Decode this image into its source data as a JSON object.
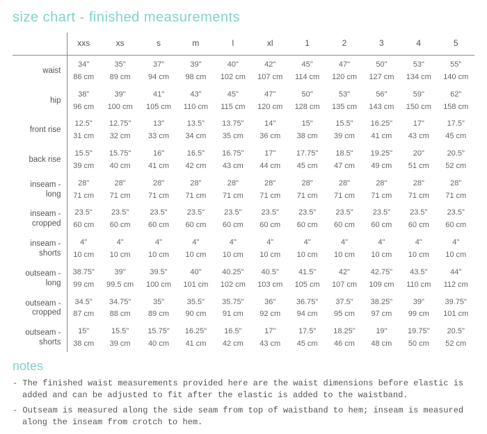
{
  "title": "size chart - finished measurements",
  "colors": {
    "accent": "#80d3c9",
    "text": "#505050",
    "cell": "#666666",
    "rule": "#888888",
    "background": "#ffffff"
  },
  "sizes": [
    "xxs",
    "xs",
    "s",
    "m",
    "l",
    "xl",
    "1",
    "2",
    "3",
    "4",
    "5"
  ],
  "rows": [
    {
      "label": "waist",
      "inches": [
        "34\"",
        "35\"",
        "37\"",
        "39\"",
        "40\"",
        "42\"",
        "45\"",
        "47\"",
        "50\"",
        "53\"",
        "55\""
      ],
      "cm": [
        "86 cm",
        "89 cm",
        "94 cm",
        "98 cm",
        "102 cm",
        "107 cm",
        "114 cm",
        "120 cm",
        "127 cm",
        "134 cm",
        "140 cm"
      ]
    },
    {
      "label": "hip",
      "inches": [
        "38\"",
        "39\"",
        "41\"",
        "43\"",
        "45\"",
        "47\"",
        "50\"",
        "53\"",
        "56\"",
        "59\"",
        "62\""
      ],
      "cm": [
        "96 cm",
        "100 cm",
        "105 cm",
        "110 cm",
        "115 cm",
        "120 cm",
        "128 cm",
        "135 cm",
        "143 cm",
        "150 cm",
        "158 cm"
      ]
    },
    {
      "label": "front rise",
      "inches": [
        "12.5\"",
        "12.75\"",
        "13\"",
        "13.5\"",
        "13.75\"",
        "14\"",
        "15\"",
        "15.5\"",
        "16.25\"",
        "17\"",
        "17.5\""
      ],
      "cm": [
        "31 cm",
        "32 cm",
        "33 cm",
        "34 cm",
        "35 cm",
        "36 cm",
        "38 cm",
        "39 cm",
        "41 cm",
        "43 cm",
        "45 cm"
      ]
    },
    {
      "label": "back rise",
      "inches": [
        "15.5\"",
        "15.75\"",
        "16\"",
        "16.5\"",
        "16.75\"",
        "17\"",
        "17.75\"",
        "18.5\"",
        "19.25\"",
        "20\"",
        "20.5\""
      ],
      "cm": [
        "39 cm",
        "40 cm",
        "41 cm",
        "42 cm",
        "43 cm",
        "44 cm",
        "45 cm",
        "47 cm",
        "49 cm",
        "51 cm",
        "52 cm"
      ]
    },
    {
      "label": "inseam -\nlong",
      "inches": [
        "28\"",
        "28\"",
        "28\"",
        "28\"",
        "28\"",
        "28\"",
        "28\"",
        "28\"",
        "28\"",
        "28\"",
        "28\""
      ],
      "cm": [
        "71 cm",
        "71 cm",
        "71 cm",
        "71 cm",
        "71 cm",
        "71 cm",
        "71 cm",
        "71 cm",
        "71 cm",
        "71 cm",
        "71 cm"
      ]
    },
    {
      "label": "inseam -\ncropped",
      "inches": [
        "23.5\"",
        "23.5\"",
        "23.5\"",
        "23.5\"",
        "23.5\"",
        "23.5\"",
        "23.5\"",
        "23.5\"",
        "23.5\"",
        "23.5\"",
        "23.5\""
      ],
      "cm": [
        "60 cm",
        "60 cm",
        "60 cm",
        "60 cm",
        "60 cm",
        "60 cm",
        "60 cm",
        "60 cm",
        "60 cm",
        "60 cm",
        "60 cm"
      ]
    },
    {
      "label": "inseam -\nshorts",
      "inches": [
        "4\"",
        "4\"",
        "4\"",
        "4\"",
        "4\"",
        "4\"",
        "4\"",
        "4\"",
        "4\"",
        "4\"",
        "4\""
      ],
      "cm": [
        "10 cm",
        "10 cm",
        "10 cm",
        "10 cm",
        "10 cm",
        "10 cm",
        "10 cm",
        "10 cm",
        "10 cm",
        "10 cm",
        "10 cm"
      ]
    },
    {
      "label": "outseam -\nlong",
      "inches": [
        "38.75\"",
        "39\"",
        "39.5\"",
        "40\"",
        "40.25\"",
        "40.5\"",
        "41.5\"",
        "42\"",
        "42.75\"",
        "43.5\"",
        "44\""
      ],
      "cm": [
        "99 cm",
        "99.5 cm",
        "100 cm",
        "101 cm",
        "102 cm",
        "103 cm",
        "105 cm",
        "107 cm",
        "109 cm",
        "110 cm",
        "112 cm"
      ]
    },
    {
      "label": "outseam -\ncropped",
      "inches": [
        "34.5\"",
        "34.75\"",
        "35\"",
        "35.5\"",
        "35.75\"",
        "36\"",
        "36.75\"",
        "37.5\"",
        "38.25\"",
        "39\"",
        "39.75\""
      ],
      "cm": [
        "87 cm",
        "88 cm",
        "89 cm",
        "90 cm",
        "91 cm",
        "92 cm",
        "94 cm",
        "95 cm",
        "97 cm",
        "99 cm",
        "101 cm"
      ]
    },
    {
      "label": "outseam -\nshorts",
      "inches": [
        "15\"",
        "15.5\"",
        "15.75\"",
        "16.25\"",
        "16.5\"",
        "17\"",
        "17.5\"",
        "18.25\"",
        "19\"",
        "19.75\"",
        "20.5\""
      ],
      "cm": [
        "38 cm",
        "39 cm",
        "40 cm",
        "41 cm",
        "42 cm",
        "43 cm",
        "45 cm",
        "46 cm",
        "48 cm",
        "50 cm",
        "52 cm"
      ]
    }
  ],
  "notes_title": "notes",
  "notes": [
    "- The finished waist measurements provided here are the waist dimensions before elastic is added and can be adjusted to fit after the elastic is added to the waistband.",
    "- Outseam is measured along the side seam from top of waistband to hem; inseam is measured along the inseam from crotch to hem."
  ]
}
